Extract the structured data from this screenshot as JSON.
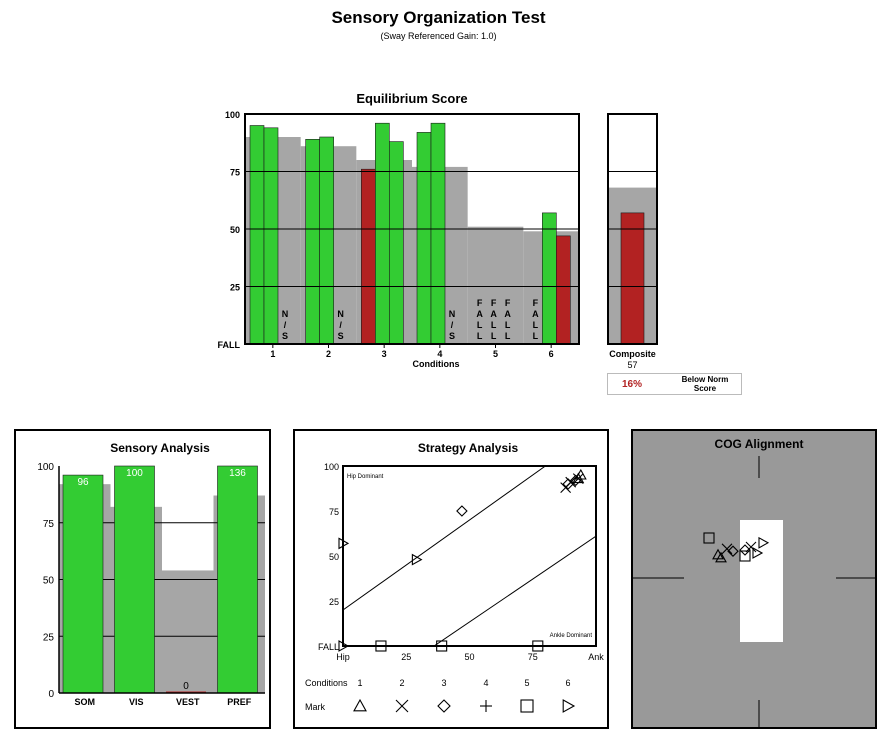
{
  "header": {
    "title": "Sensory Organization Test",
    "subtitle": "(Sway Referenced Gain: 1.0)"
  },
  "composite": {
    "label": "Composite",
    "value": 57,
    "norm": 68,
    "percentile": "16%",
    "status_line1": "Below Norm",
    "status_line2": "Score"
  },
  "colors": {
    "pass": "#33cc33",
    "fail": "#b22222",
    "norm": "#a6a6a6",
    "cog_bg": "#999999"
  },
  "chart_data": [
    {
      "type": "bar",
      "title": "Equilibrium Score",
      "xlabel": "Conditions",
      "ylabel": "",
      "ylim": [
        0,
        100
      ],
      "ytick_labels": [
        "FALL",
        "25",
        "50",
        "75",
        "100"
      ],
      "categories": [
        "1",
        "2",
        "3",
        "4",
        "5",
        "6"
      ],
      "norm": [
        90,
        86,
        80,
        77,
        51,
        49
      ],
      "trials": [
        [
          {
            "value": 95,
            "status": "pass"
          },
          {
            "value": 94,
            "status": "pass"
          },
          {
            "value": null,
            "label": "N/S"
          }
        ],
        [
          {
            "value": 89,
            "status": "pass"
          },
          {
            "value": 90,
            "status": "pass"
          },
          {
            "value": null,
            "label": "N/S"
          }
        ],
        [
          {
            "value": 76,
            "status": "fail"
          },
          {
            "value": 96,
            "status": "pass"
          },
          {
            "value": 88,
            "status": "pass"
          }
        ],
        [
          {
            "value": 92,
            "status": "pass"
          },
          {
            "value": 96,
            "status": "pass"
          },
          {
            "value": null,
            "label": "N/S"
          }
        ],
        [
          {
            "value": null,
            "label": "FALL"
          },
          {
            "value": null,
            "label": "FALL"
          },
          {
            "value": null,
            "label": "FALL"
          }
        ],
        [
          {
            "value": null,
            "label": "FALL"
          },
          {
            "value": 57,
            "status": "pass"
          },
          {
            "value": 47,
            "status": "fail"
          }
        ]
      ],
      "composite_label": "Composite 57"
    },
    {
      "type": "bar",
      "title": "Sensory Analysis",
      "ylim": [
        0,
        100
      ],
      "ytick_labels": [
        "0",
        "25",
        "50",
        "75",
        "100"
      ],
      "categories": [
        "SOM",
        "VIS",
        "VEST",
        "PREF"
      ],
      "values": [
        96,
        100,
        0,
        136
      ],
      "value_labels": [
        "96",
        "100",
        "0",
        "136"
      ],
      "norm": [
        92,
        82,
        54,
        87
      ]
    },
    {
      "type": "scatter",
      "title": "Strategy Analysis",
      "xlim": [
        0,
        100
      ],
      "ylim": [
        0,
        100
      ],
      "xtick_labels": [
        "Hip",
        "25",
        "50",
        "75",
        "Ank"
      ],
      "ytick_labels": [
        "FALL",
        "25",
        "50",
        "75",
        "100"
      ],
      "annotations": [
        "Hip Dominant",
        "Ankle Dominant"
      ],
      "conditions_label": "Conditions",
      "mark_label": "Mark",
      "condition_numbers": [
        "1",
        "2",
        "3",
        "4",
        "5",
        "6"
      ],
      "markers": [
        "triangle",
        "x",
        "diamond",
        "plus",
        "square",
        "triangle-right"
      ],
      "points": [
        {
          "condition": 1,
          "x": 93,
          "y": 93
        },
        {
          "condition": 1,
          "x": 94,
          "y": 95
        },
        {
          "condition": 2,
          "x": 88,
          "y": 88
        },
        {
          "condition": 2,
          "x": 90,
          "y": 91
        },
        {
          "condition": 2,
          "x": 93,
          "y": 93
        },
        {
          "condition": 3,
          "x": 89,
          "y": 90
        },
        {
          "condition": 3,
          "x": 92,
          "y": 92
        },
        {
          "condition": 3,
          "x": 47,
          "y": 75
        },
        {
          "condition": 5,
          "x": 15,
          "y": 0
        },
        {
          "condition": 5,
          "x": 39,
          "y": 0
        },
        {
          "condition": 5,
          "x": 77,
          "y": 0
        },
        {
          "condition": 6,
          "x": 0,
          "y": 57
        },
        {
          "condition": 6,
          "x": 29,
          "y": 48
        },
        {
          "condition": 6,
          "x": 0,
          "y": 0
        }
      ]
    },
    {
      "type": "scatter",
      "title": "COG Alignment",
      "points": [
        {
          "marker": "square",
          "x": -0.55,
          "y": 0.7
        },
        {
          "marker": "triangle-right",
          "x": 0.35,
          "y": 0.62
        },
        {
          "marker": "x",
          "x": 0.15,
          "y": 0.55
        },
        {
          "marker": "diamond",
          "x": 0.05,
          "y": 0.5
        },
        {
          "marker": "triangle",
          "x": -0.4,
          "y": 0.42
        },
        {
          "marker": "triangle",
          "x": -0.35,
          "y": 0.37
        },
        {
          "marker": "square",
          "x": 0.05,
          "y": 0.4
        },
        {
          "marker": "triangle-right",
          "x": 0.25,
          "y": 0.45
        },
        {
          "marker": "diamond",
          "x": -0.15,
          "y": 0.48
        },
        {
          "marker": "x",
          "x": -0.25,
          "y": 0.52
        }
      ]
    }
  ]
}
